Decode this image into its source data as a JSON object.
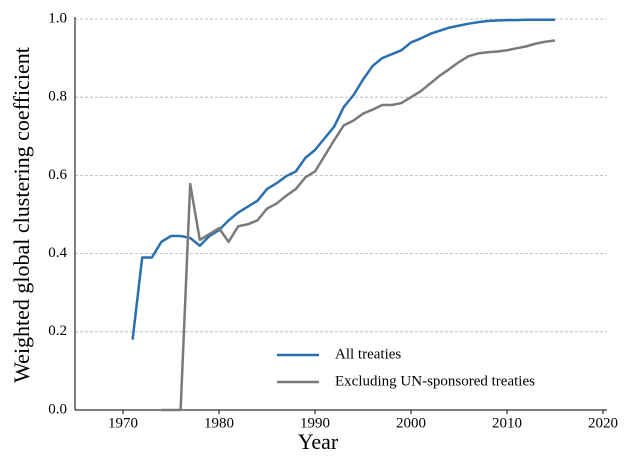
{
  "chart_data": {
    "type": "line",
    "x_label": "Year",
    "y_label": "Weighted global clustering coefficient",
    "x": [
      1971,
      1972,
      1973,
      1974,
      1975,
      1976,
      1977,
      1978,
      1979,
      1980,
      1981,
      1982,
      1983,
      1984,
      1985,
      1986,
      1987,
      1988,
      1989,
      1990,
      1991,
      1992,
      1993,
      1994,
      1995,
      1996,
      1997,
      1998,
      1999,
      2000,
      2001,
      2002,
      2003,
      2004,
      2005,
      2006,
      2007,
      2008,
      2009,
      2010,
      2011,
      2012,
      2013,
      2014,
      2015
    ],
    "series": [
      {
        "name": "All treaties",
        "color": "#2a6fb0",
        "values": [
          0.18,
          0.39,
          0.39,
          0.43,
          0.445,
          0.445,
          0.44,
          0.42,
          0.445,
          0.46,
          0.485,
          0.505,
          0.52,
          0.535,
          0.565,
          0.58,
          0.598,
          0.61,
          0.645,
          0.665,
          0.695,
          0.725,
          0.775,
          0.805,
          0.845,
          0.88,
          0.9,
          0.91,
          0.92,
          0.94,
          0.95,
          0.962,
          0.97,
          0.978,
          0.983,
          0.988,
          0.992,
          0.995,
          0.996,
          0.997,
          0.997,
          0.998,
          0.998,
          0.998,
          0.998
        ]
      },
      {
        "name": "Excluding UN-sponsored treaties",
        "color": "#7a7a7a",
        "values": [
          null,
          null,
          null,
          0,
          0,
          0,
          0.578,
          0.435,
          0.45,
          0.465,
          0.43,
          0.47,
          0.475,
          0.485,
          0.515,
          0.528,
          0.548,
          0.565,
          0.595,
          0.61,
          0.65,
          0.69,
          0.728,
          0.74,
          0.758,
          0.768,
          0.78,
          0.78,
          0.785,
          0.8,
          0.815,
          0.835,
          0.855,
          0.872,
          0.89,
          0.905,
          0.912,
          0.915,
          0.917,
          0.92,
          0.925,
          0.93,
          0.937,
          0.942,
          0.945
        ]
      }
    ],
    "xlim": [
      1965,
      2020
    ],
    "xticks": [
      1970,
      1980,
      1990,
      2000,
      2010,
      2020
    ],
    "ylim": [
      0,
      1
    ],
    "yticks": [
      {
        "value": 0,
        "label": "0.0"
      },
      0.2,
      0.4,
      0.6,
      0.8,
      {
        "value": 1,
        "label": "1.0"
      }
    ],
    "grid": true,
    "legend": "lower right"
  }
}
